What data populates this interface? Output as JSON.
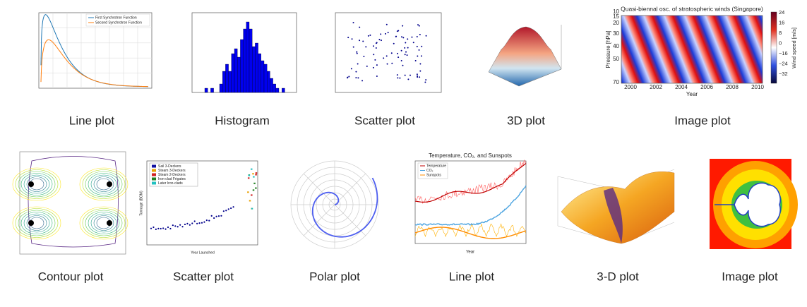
{
  "items": [
    {
      "caption": "Line plot",
      "texts": [
        "First Synchrotron Function",
        "Second Synchrotron Function"
      ]
    },
    {
      "caption": "Histogram",
      "texts": []
    },
    {
      "caption": "Scatter plot",
      "texts": []
    },
    {
      "caption": "3D plot",
      "texts": []
    },
    {
      "caption": "Image plot",
      "texts": [
        "Quasi-biennal osc. of stratospheric winds (Singapore)",
        "Pressure [hPa]",
        "Year",
        "Wind speed [m/s]"
      ],
      "xticks": [
        "2000",
        "2002",
        "2004",
        "2006",
        "2008",
        "2010"
      ],
      "yticks": [
        "10",
        "15",
        "20",
        "30",
        "40",
        "50",
        "70"
      ],
      "cticks": [
        "24",
        "16",
        "8",
        "0",
        "−16",
        "−24",
        "−32"
      ]
    },
    {
      "caption": "Contour plot",
      "texts": []
    },
    {
      "caption": "Scatter plot",
      "texts": [
        "Sail 3-Deckers",
        "Steam 3-Deckers",
        "Steam 2-Deckers",
        "Iron-clad Frigates",
        "Later Iron-clads",
        "Year Launched",
        "Tonnage (BOM)"
      ]
    },
    {
      "caption": "Polar plot",
      "texts": []
    },
    {
      "caption": "Line plot",
      "texts": [
        "Temperature, CO₂, and Sunspots",
        "Temperature",
        "CO₂",
        "Sunspots",
        "Year"
      ]
    },
    {
      "caption": "3-D plot",
      "texts": []
    },
    {
      "caption": "Image plot",
      "texts": []
    }
  ]
}
